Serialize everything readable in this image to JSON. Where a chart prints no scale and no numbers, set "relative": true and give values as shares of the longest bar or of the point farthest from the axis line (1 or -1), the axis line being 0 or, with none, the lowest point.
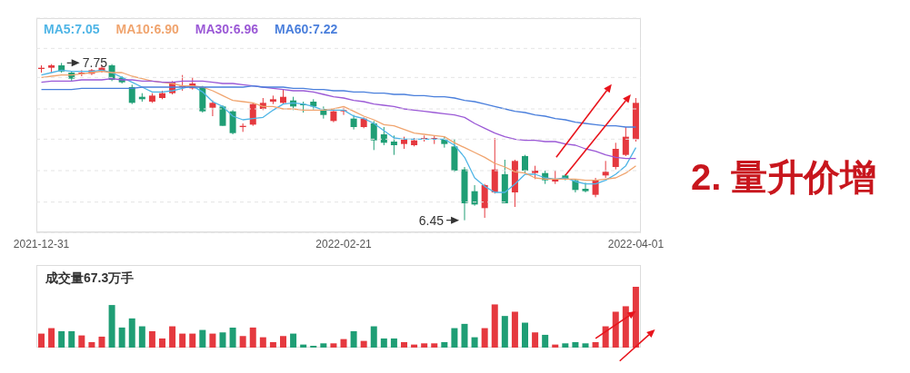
{
  "chart_data": [
    {
      "type": "candlestick",
      "legend": "top left",
      "grid": "y",
      "tick_labels": "x",
      "categories": [
        "2021-12-31",
        null,
        null,
        null,
        null,
        null,
        null,
        null,
        null,
        null,
        null,
        null,
        null,
        null,
        null,
        null,
        null,
        null,
        null,
        null,
        null,
        null,
        null,
        null,
        null,
        null,
        null,
        null,
        null,
        null,
        "2022-02-21",
        null,
        null,
        null,
        null,
        null,
        null,
        null,
        null,
        null,
        null,
        null,
        null,
        null,
        null,
        null,
        null,
        null,
        null,
        null,
        null,
        null,
        null,
        null,
        null,
        null,
        null,
        null,
        null,
        "2022-04-01"
      ],
      "ylim": [
        6.35,
        8.12
      ],
      "yticks": [
        {
          "value": 6.6,
          "label": null
        },
        {
          "value": 6.86,
          "label": null
        },
        {
          "value": 7.12,
          "label": null
        },
        {
          "value": 7.37,
          "label": null
        },
        {
          "value": 7.63,
          "label": null
        },
        {
          "value": 7.87,
          "label": null
        }
      ],
      "ohlc": [
        [
          7.7,
          7.73,
          7.67,
          7.71
        ],
        [
          7.71,
          7.74,
          7.67,
          7.73
        ],
        [
          7.73,
          7.75,
          7.67,
          7.68
        ],
        [
          7.67,
          7.68,
          7.6,
          7.62
        ],
        [
          7.66,
          7.69,
          7.64,
          7.67
        ],
        [
          7.66,
          7.7,
          7.65,
          7.69
        ],
        [
          7.68,
          7.73,
          7.67,
          7.71
        ],
        [
          7.73,
          7.74,
          7.6,
          7.61
        ],
        [
          7.63,
          7.64,
          7.58,
          7.59
        ],
        [
          7.55,
          7.57,
          7.41,
          7.42
        ],
        [
          7.47,
          7.5,
          7.43,
          7.45
        ],
        [
          7.43,
          7.5,
          7.42,
          7.48
        ],
        [
          7.46,
          7.52,
          7.45,
          7.5
        ],
        [
          7.5,
          7.6,
          7.49,
          7.59
        ],
        [
          7.55,
          7.65,
          7.52,
          7.56
        ],
        [
          7.54,
          7.63,
          7.53,
          7.58
        ],
        [
          7.55,
          7.56,
          7.34,
          7.35
        ],
        [
          7.38,
          7.44,
          7.31,
          7.42
        ],
        [
          7.39,
          7.4,
          7.23,
          7.23
        ],
        [
          7.35,
          7.36,
          7.16,
          7.17
        ],
        [
          7.22,
          7.25,
          7.18,
          7.23
        ],
        [
          7.24,
          7.42,
          7.23,
          7.41
        ],
        [
          7.37,
          7.46,
          7.36,
          7.42
        ],
        [
          7.43,
          7.48,
          7.41,
          7.45
        ],
        [
          7.42,
          7.53,
          7.41,
          7.47
        ],
        [
          7.44,
          7.47,
          7.36,
          7.39
        ],
        [
          7.41,
          7.43,
          7.34,
          7.4
        ],
        [
          7.43,
          7.45,
          7.36,
          7.39
        ],
        [
          7.37,
          7.39,
          7.29,
          7.32
        ],
        [
          7.27,
          7.36,
          7.26,
          7.35
        ],
        [
          7.35,
          7.38,
          7.32,
          7.36
        ],
        [
          7.29,
          7.32,
          7.2,
          7.22
        ],
        [
          7.22,
          7.3,
          7.21,
          7.29
        ],
        [
          7.25,
          7.27,
          7.03,
          7.11
        ],
        [
          7.16,
          7.22,
          7.07,
          7.09
        ],
        [
          7.1,
          7.15,
          6.99,
          7.07
        ],
        [
          7.08,
          7.14,
          7.04,
          7.12
        ],
        [
          7.07,
          7.13,
          7.06,
          7.11
        ],
        [
          7.12,
          7.15,
          7.1,
          7.13
        ],
        [
          7.12,
          7.15,
          7.08,
          7.13
        ],
        [
          7.12,
          7.14,
          7.05,
          7.08
        ],
        [
          7.06,
          7.12,
          6.85,
          6.86
        ],
        [
          6.87,
          6.89,
          6.45,
          6.59
        ],
        [
          6.69,
          6.74,
          6.57,
          6.58
        ],
        [
          6.55,
          6.75,
          6.47,
          6.74
        ],
        [
          6.68,
          7.13,
          6.67,
          6.87
        ],
        [
          6.83,
          6.95,
          6.59,
          6.59
        ],
        [
          6.68,
          6.95,
          6.56,
          6.94
        ],
        [
          6.98,
          6.99,
          6.84,
          6.86
        ],
        [
          6.84,
          6.9,
          6.79,
          6.86
        ],
        [
          6.84,
          6.86,
          6.75,
          6.78
        ],
        [
          6.77,
          6.86,
          6.75,
          6.79
        ],
        [
          6.82,
          6.83,
          6.78,
          6.79
        ],
        [
          6.78,
          6.79,
          6.68,
          6.7
        ],
        [
          6.71,
          6.76,
          6.68,
          6.69
        ],
        [
          6.66,
          6.8,
          6.64,
          6.78
        ],
        [
          6.82,
          6.94,
          6.8,
          6.85
        ],
        [
          6.89,
          7.09,
          6.87,
          7.04
        ],
        [
          6.99,
          7.22,
          6.98,
          7.14
        ],
        [
          7.12,
          7.46,
          7.1,
          7.42
        ]
      ],
      "colors": [
        "#e5393f",
        "#e5393f",
        "#1f9e75",
        "#1f9e75",
        "#e5393f",
        "#e5393f",
        "#e5393f",
        "#1f9e75",
        "#1f9e75",
        "#1f9e75",
        "#1f9e75",
        "#e5393f",
        "#e5393f",
        "#e5393f",
        "#e5393f",
        "#e5393f",
        "#1f9e75",
        "#e5393f",
        "#1f9e75",
        "#1f9e75",
        "#e5393f",
        "#e5393f",
        "#e5393f",
        "#e5393f",
        "#e5393f",
        "#1f9e75",
        "#1f9e75",
        "#1f9e75",
        "#1f9e75",
        "#e5393f",
        "#e5393f",
        "#1f9e75",
        "#e5393f",
        "#1f9e75",
        "#1f9e75",
        "#1f9e75",
        "#e5393f",
        "#e5393f",
        "#e5393f",
        "#e5393f",
        "#1f9e75",
        "#1f9e75",
        "#1f9e75",
        "#1f9e75",
        "#e5393f",
        "#e5393f",
        "#1f9e75",
        "#e5393f",
        "#1f9e75",
        "#e5393f",
        "#1f9e75",
        "#e5393f",
        "#1f9e75",
        "#1f9e75",
        "#1f9e75",
        "#e5393f",
        "#e5393f",
        "#e5393f",
        "#e5393f",
        "#e5393f"
      ],
      "series": [
        {
          "name": "MA5:7.05",
          "type": "line",
          "color": "#4fb5e6",
          "values": [
            7.65,
            7.67,
            7.69,
            7.68,
            7.68,
            7.68,
            7.69,
            7.67,
            7.63,
            7.59,
            7.55,
            7.51,
            7.51,
            7.52,
            7.54,
            7.56,
            7.51,
            7.43,
            7.39,
            7.31,
            7.28,
            7.29,
            7.3,
            7.36,
            7.41,
            7.42,
            7.41,
            7.39,
            7.36,
            7.36,
            7.36,
            7.31,
            7.29,
            7.25,
            7.19,
            7.13,
            7.12,
            7.12,
            7.12,
            7.12,
            7.12,
            7.07,
            6.97,
            6.8,
            6.73,
            6.68,
            6.68,
            6.75,
            6.83,
            6.83,
            6.8,
            6.79,
            6.8,
            6.77,
            6.75,
            6.75,
            6.78,
            6.83,
            6.9,
            7.05
          ]
        },
        {
          "name": "MA10:6.90",
          "type": "line",
          "color": "#f0a46e",
          "values": [
            7.63,
            7.64,
            7.65,
            7.65,
            7.66,
            7.67,
            7.68,
            7.67,
            7.67,
            7.64,
            7.62,
            7.6,
            7.59,
            7.58,
            7.56,
            7.56,
            7.55,
            7.52,
            7.48,
            7.44,
            7.43,
            7.42,
            7.39,
            7.39,
            7.37,
            7.37,
            7.36,
            7.36,
            7.36,
            7.37,
            7.39,
            7.35,
            7.31,
            7.28,
            7.24,
            7.23,
            7.2,
            7.17,
            7.16,
            7.15,
            7.14,
            7.09,
            7.05,
            7.01,
            6.97,
            6.92,
            6.89,
            6.85,
            6.84,
            6.8,
            6.79,
            6.79,
            6.79,
            6.79,
            6.78,
            6.78,
            6.79,
            6.8,
            6.84,
            6.9
          ]
        },
        {
          "name": "MA30:6.96",
          "type": "line",
          "color": "#9b59d6",
          "values": [
            7.59,
            7.6,
            7.6,
            7.6,
            7.61,
            7.61,
            7.61,
            7.62,
            7.61,
            7.61,
            7.6,
            7.6,
            7.59,
            7.59,
            7.6,
            7.6,
            7.6,
            7.59,
            7.58,
            7.58,
            7.57,
            7.56,
            7.55,
            7.54,
            7.53,
            7.52,
            7.52,
            7.51,
            7.49,
            7.47,
            7.46,
            7.44,
            7.43,
            7.41,
            7.4,
            7.39,
            7.37,
            7.36,
            7.35,
            7.34,
            7.33,
            7.32,
            7.3,
            7.25,
            7.21,
            7.17,
            7.14,
            7.12,
            7.11,
            7.11,
            7.1,
            7.1,
            7.08,
            7.07,
            7.04,
            7.02,
            6.99,
            6.97,
            6.96,
            6.96
          ]
        },
        {
          "name": "MA60:7.22",
          "type": "line",
          "color": "#4a7fdc",
          "values": [
            7.53,
            7.53,
            7.53,
            7.53,
            7.54,
            7.54,
            7.54,
            7.54,
            7.54,
            7.54,
            7.55,
            7.55,
            7.55,
            7.55,
            7.55,
            7.55,
            7.55,
            7.55,
            7.55,
            7.55,
            7.55,
            7.56,
            7.55,
            7.55,
            7.55,
            7.54,
            7.54,
            7.53,
            7.53,
            7.52,
            7.52,
            7.51,
            7.51,
            7.5,
            7.5,
            7.49,
            7.49,
            7.48,
            7.48,
            7.47,
            7.47,
            7.46,
            7.44,
            7.43,
            7.41,
            7.39,
            7.37,
            7.35,
            7.34,
            7.32,
            7.31,
            7.29,
            7.28,
            7.26,
            7.25,
            7.24,
            7.23,
            7.23,
            7.22,
            7.22
          ]
        }
      ],
      "annotations": [
        "7.75",
        "6.45",
        "2. 量升价增"
      ]
    },
    {
      "type": "bar",
      "relative": true,
      "tick_labels": false,
      "title": "成交量67.3万手",
      "categories": [
        null,
        null,
        null,
        null,
        null,
        null,
        null,
        null,
        null,
        null,
        null,
        null,
        null,
        null,
        null,
        null,
        null,
        null,
        null,
        null,
        null,
        null,
        null,
        null,
        null,
        null,
        null,
        null,
        null,
        null,
        null,
        null,
        null,
        null,
        null,
        null,
        null,
        null,
        null,
        null,
        null,
        null,
        null,
        null,
        null,
        null,
        null,
        null,
        null,
        null,
        null,
        null,
        null,
        null,
        null,
        null,
        null,
        null,
        null,
        null
      ],
      "values": [
        0.23,
        0.32,
        0.27,
        0.27,
        0.2,
        0.09,
        0.18,
        0.7,
        0.33,
        0.48,
        0.35,
        0.27,
        0.15,
        0.35,
        0.23,
        0.23,
        0.29,
        0.23,
        0.25,
        0.33,
        0.19,
        0.33,
        0.17,
        0.09,
        0.19,
        0.23,
        0.05,
        0.03,
        0.07,
        0.07,
        0.14,
        0.27,
        0.11,
        0.35,
        0.15,
        0.15,
        0.09,
        0.05,
        0.07,
        0.07,
        0.09,
        0.32,
        0.39,
        0.17,
        0.32,
        0.71,
        0.52,
        0.59,
        0.41,
        0.25,
        0.21,
        0.05,
        0.07,
        0.09,
        0.07,
        0.09,
        0.35,
        0.59,
        0.68,
        1
      ],
      "colors": [
        "#e5393f",
        "#e5393f",
        "#1f9e75",
        "#1f9e75",
        "#e5393f",
        "#e5393f",
        "#e5393f",
        "#1f9e75",
        "#1f9e75",
        "#1f9e75",
        "#1f9e75",
        "#e5393f",
        "#e5393f",
        "#e5393f",
        "#e5393f",
        "#e5393f",
        "#1f9e75",
        "#e5393f",
        "#1f9e75",
        "#1f9e75",
        "#e5393f",
        "#e5393f",
        "#e5393f",
        "#e5393f",
        "#e5393f",
        "#1f9e75",
        "#1f9e75",
        "#1f9e75",
        "#1f9e75",
        "#e5393f",
        "#e5393f",
        "#1f9e75",
        "#e5393f",
        "#1f9e75",
        "#1f9e75",
        "#1f9e75",
        "#e5393f",
        "#e5393f",
        "#e5393f",
        "#e5393f",
        "#1f9e75",
        "#1f9e75",
        "#1f9e75",
        "#1f9e75",
        "#e5393f",
        "#e5393f",
        "#1f9e75",
        "#e5393f",
        "#1f9e75",
        "#e5393f",
        "#1f9e75",
        "#e5393f",
        "#1f9e75",
        "#1f9e75",
        "#1f9e75",
        "#e5393f",
        "#e5393f",
        "#e5393f",
        "#e5393f",
        "#e5393f"
      ]
    }
  ]
}
